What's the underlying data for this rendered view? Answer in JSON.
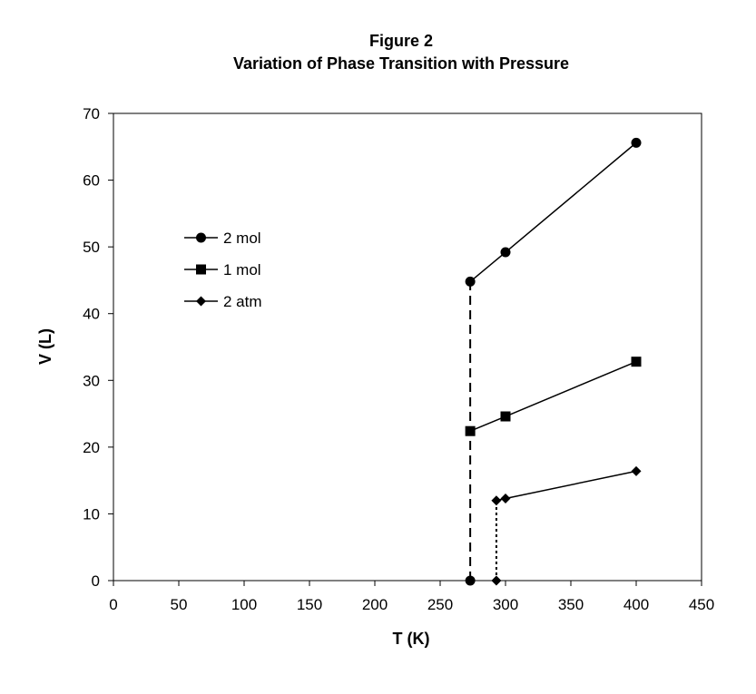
{
  "chart_data": {
    "type": "scatter",
    "title_line1": "Figure 2",
    "title_line2": "Variation of Phase Transition with Pressure",
    "xlabel": "T (K)",
    "ylabel": "V (L)",
    "xlim": [
      0,
      450
    ],
    "ylim": [
      0,
      70
    ],
    "xticks": [
      0,
      50,
      100,
      150,
      200,
      250,
      300,
      350,
      400,
      450
    ],
    "yticks": [
      0,
      10,
      20,
      30,
      40,
      50,
      60,
      70
    ],
    "grid": false,
    "legend_position": "left",
    "series": [
      {
        "name": "2 mol",
        "marker": "circle",
        "x": [
          273,
          300,
          400
        ],
        "y": [
          44.8,
          49.2,
          65.6
        ]
      },
      {
        "name": "1 mol",
        "marker": "square",
        "x": [
          273,
          300,
          400
        ],
        "y": [
          22.4,
          24.6,
          32.8
        ]
      },
      {
        "name": "2 atm",
        "marker": "diamond",
        "x": [
          293,
          300,
          400
        ],
        "y": [
          12.0,
          12.3,
          16.4
        ]
      }
    ],
    "transition_lines": [
      {
        "style": "dashed",
        "x": 273,
        "y_from": 0,
        "y_to": 44.8,
        "bottom_marker": "circle"
      },
      {
        "style": "dotted",
        "x": 293,
        "y_from": 0,
        "y_to": 12.0,
        "bottom_marker": "diamond"
      }
    ],
    "color": "#000000"
  }
}
